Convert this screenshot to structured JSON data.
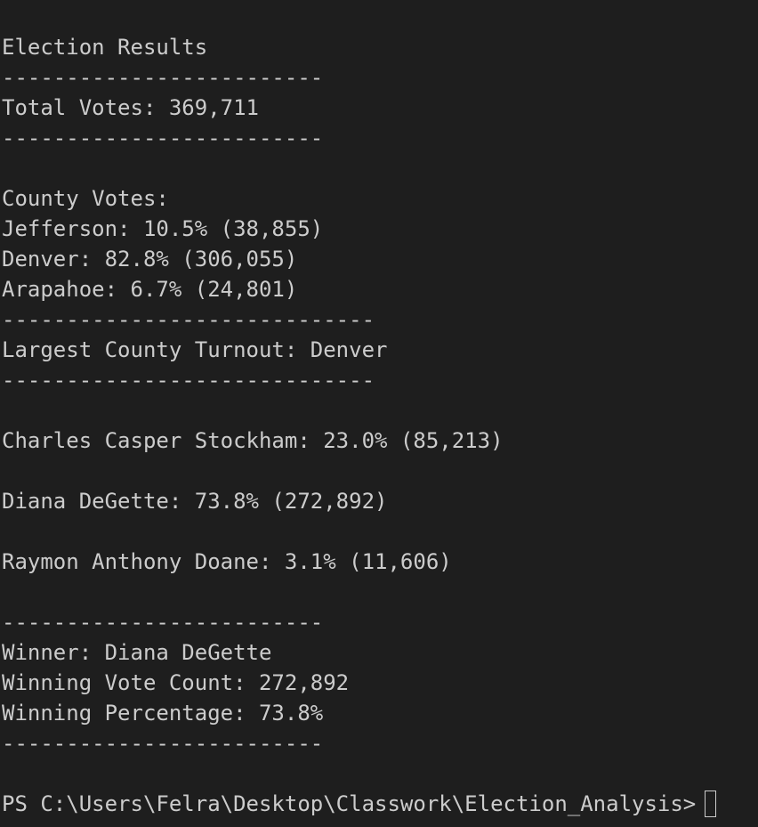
{
  "terminal": {
    "lines": [
      "Election Results",
      "-------------------------",
      "Total Votes: 369,711",
      "-------------------------",
      "",
      "County Votes:",
      "Jefferson: 10.5% (38,855)",
      "Denver: 82.8% (306,055)",
      "Arapahoe: 6.7% (24,801)",
      "-----------------------------",
      "Largest County Turnout: Denver",
      "-----------------------------",
      "",
      "Charles Casper Stockham: 23.0% (85,213)",
      "",
      "Diana DeGette: 73.8% (272,892)",
      "",
      "Raymon Anthony Doane: 3.1% (11,606)",
      "",
      "-------------------------",
      "Winner: Diana DeGette",
      "Winning Vote Count: 272,892",
      "Winning Percentage: 73.8%",
      "-------------------------"
    ],
    "prompt": "PS C:\\Users\\Felra\\Desktop\\Classwork\\Election_Analysis>",
    "colors": {
      "background": "#1e1e1e",
      "foreground": "#cccccc"
    }
  }
}
